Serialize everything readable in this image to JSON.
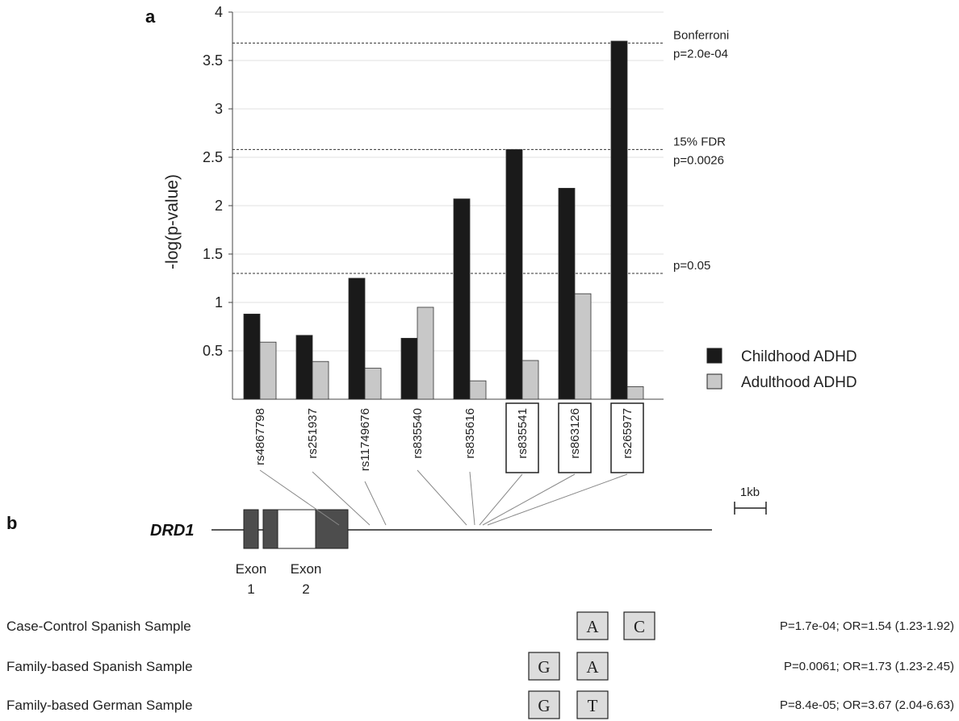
{
  "panel_a_letter": "a",
  "panel_b_letter": "b",
  "colors": {
    "childhood": "#1a1a1a",
    "adulthood": "#c8c8c8",
    "exon_dark": "#4d4d4d",
    "exon_light": "#ffffff",
    "allele_box": "#dcdcdc"
  },
  "chart_data": {
    "type": "bar",
    "ylabel": "-log(p-value)",
    "xlabel": "",
    "ylim": [
      0,
      4
    ],
    "yticks": [
      "0.5",
      "1",
      "1.5",
      "2",
      "2.5",
      "3",
      "3.5",
      "4"
    ],
    "categories": [
      "rs4867798",
      "rs251937",
      "rs11749676",
      "rs835540",
      "rs835616",
      "rs835541",
      "rs863126",
      "rs265977"
    ],
    "boxed_categories": [
      "rs835541",
      "rs863126",
      "rs265977"
    ],
    "series": [
      {
        "name": "Childhood ADHD",
        "values": [
          0.88,
          0.66,
          1.25,
          0.63,
          2.07,
          2.58,
          2.18,
          3.7
        ]
      },
      {
        "name": "Adulthood ADHD",
        "values": [
          0.59,
          0.39,
          0.32,
          0.95,
          0.19,
          0.4,
          1.09,
          0.13
        ]
      }
    ],
    "thresholds": [
      {
        "value": 3.68,
        "label1": "Bonferroni",
        "label2": "p=2.0e-04"
      },
      {
        "value": 2.58,
        "label1": "15% FDR",
        "label2": "p=0.0026"
      },
      {
        "value": 1.3,
        "label1": "p=0.05",
        "label2": ""
      }
    ],
    "legend_position": "right"
  },
  "gene": {
    "name": "DRD1",
    "scale_label": "1kb",
    "exon1_line1": "Exon",
    "exon1_line2": "1",
    "exon2_line1": "Exon",
    "exon2_line2": "2"
  },
  "samples": [
    {
      "label": "Case-Control Spanish Sample",
      "alleles": [
        {
          "col": 2,
          "letter": "A"
        },
        {
          "col": 3,
          "letter": "C"
        }
      ],
      "stat": "P=1.7e-04; OR=1.54 (1.23-1.92)"
    },
    {
      "label": "Family-based Spanish Sample",
      "alleles": [
        {
          "col": 1,
          "letter": "G"
        },
        {
          "col": 2,
          "letter": "A"
        }
      ],
      "stat": "P=0.0061; OR=1.73 (1.23-2.45)"
    },
    {
      "label": "Family-based German Sample",
      "alleles": [
        {
          "col": 1,
          "letter": "G"
        },
        {
          "col": 2,
          "letter": "T"
        }
      ],
      "stat": "P=8.4e-05; OR=3.67 (2.04-6.63)"
    }
  ]
}
